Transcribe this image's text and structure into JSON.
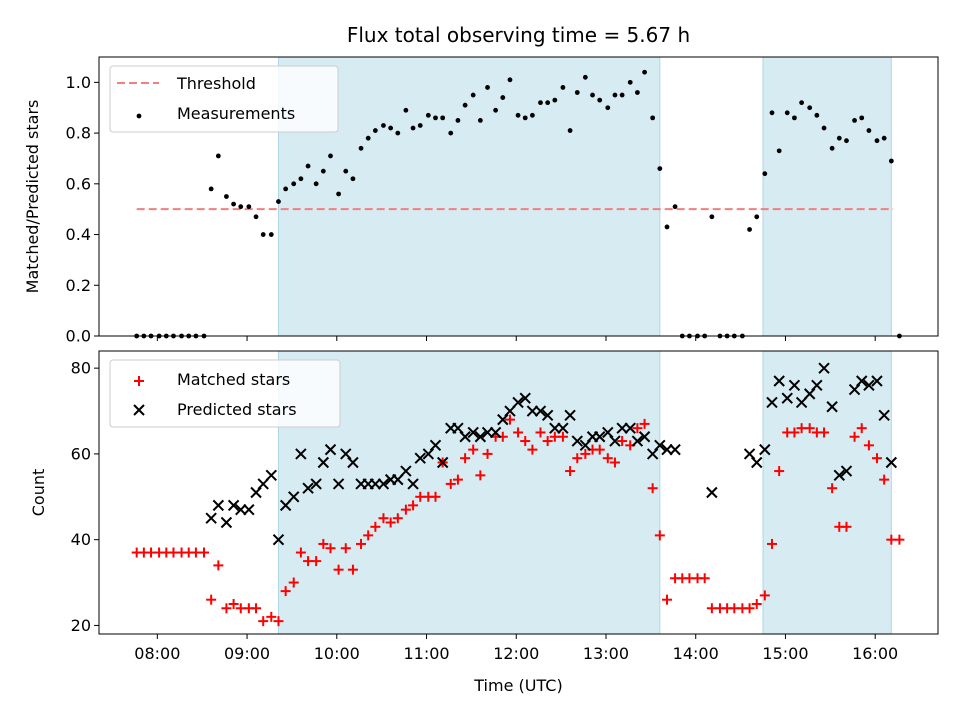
{
  "chart_data": [
    {
      "panel": "top",
      "type": "scatter",
      "title": "Flux total observing time = 5.67 h",
      "xlabel": "",
      "ylabel": "Matched/Predicted stars",
      "ylim": [
        0,
        1.1
      ],
      "yticks": [
        0.0,
        0.2,
        0.4,
        0.6,
        0.8,
        1.0
      ],
      "ytick_labels": [
        "0.0",
        "0.2",
        "0.4",
        "0.6",
        "0.8",
        "1.0"
      ],
      "threshold": {
        "label": "Threshold",
        "value": 0.5,
        "x_range": [
          7.77,
          16.2
        ],
        "color": "#f08080"
      },
      "legend": {
        "location": "upper-left",
        "entries": [
          "Threshold",
          "Measurements"
        ]
      },
      "observing_windows_hours": [
        [
          9.35,
          13.6
        ],
        [
          14.75,
          16.18
        ]
      ],
      "shade_color": "#add8e6",
      "series": [
        {
          "name": "Measurements",
          "color": "#000000",
          "marker": "dot",
          "x": [
            7.77,
            7.85,
            7.93,
            8.02,
            8.1,
            8.18,
            8.27,
            8.35,
            8.43,
            8.52,
            8.6,
            8.68,
            8.77,
            8.85,
            8.93,
            9.02,
            9.1,
            9.18,
            9.27,
            9.35,
            9.43,
            9.52,
            9.6,
            9.68,
            9.77,
            9.85,
            9.93,
            10.02,
            10.1,
            10.18,
            10.27,
            10.35,
            10.43,
            10.52,
            10.6,
            10.68,
            10.77,
            10.85,
            10.93,
            11.02,
            11.1,
            11.18,
            11.27,
            11.35,
            11.43,
            11.52,
            11.6,
            11.68,
            11.77,
            11.85,
            11.93,
            12.02,
            12.1,
            12.18,
            12.27,
            12.35,
            12.43,
            12.52,
            12.6,
            12.68,
            12.77,
            12.85,
            12.93,
            13.02,
            13.1,
            13.18,
            13.27,
            13.35,
            13.43,
            13.52,
            13.6,
            13.68,
            13.77,
            13.85,
            13.93,
            14.02,
            14.1,
            14.18,
            14.27,
            14.35,
            14.43,
            14.52,
            14.6,
            14.68,
            14.77,
            14.85,
            14.93,
            15.02,
            15.1,
            15.18,
            15.27,
            15.35,
            15.43,
            15.52,
            15.6,
            15.68,
            15.77,
            15.85,
            15.93,
            16.02,
            16.1,
            16.18,
            16.27
          ],
          "y": [
            0.0,
            0.0,
            0.0,
            0.0,
            0.0,
            0.0,
            0.0,
            0.0,
            0.0,
            0.0,
            0.58,
            0.71,
            0.55,
            0.52,
            0.51,
            0.51,
            0.47,
            0.4,
            0.4,
            0.53,
            0.58,
            0.6,
            0.62,
            0.67,
            0.6,
            0.65,
            0.71,
            0.56,
            0.65,
            0.62,
            0.74,
            0.78,
            0.81,
            0.83,
            0.82,
            0.8,
            0.89,
            0.82,
            0.83,
            0.87,
            0.86,
            0.86,
            0.8,
            0.85,
            0.91,
            0.95,
            0.85,
            0.98,
            0.89,
            0.94,
            1.01,
            0.87,
            0.86,
            0.87,
            0.92,
            0.92,
            0.93,
            0.98,
            0.81,
            0.96,
            1.02,
            0.95,
            0.93,
            0.9,
            0.95,
            0.95,
            1.0,
            0.96,
            1.04,
            0.86,
            0.66,
            0.43,
            0.51,
            0.0,
            0.0,
            0.0,
            0.0,
            0.47,
            0.0,
            0.0,
            0.0,
            0.0,
            0.42,
            0.47,
            0.64,
            0.88,
            0.73,
            0.88,
            0.86,
            0.92,
            0.9,
            0.87,
            0.82,
            0.74,
            0.78,
            0.77,
            0.85,
            0.86,
            0.81,
            0.77,
            0.78,
            0.69,
            0.0
          ]
        }
      ]
    },
    {
      "panel": "bottom",
      "type": "scatter",
      "title": "",
      "xlabel": "Time (UTC)",
      "ylabel": "Count",
      "ylim": [
        18,
        84
      ],
      "yticks": [
        20,
        40,
        60,
        80
      ],
      "ytick_labels": [
        "20",
        "40",
        "60",
        "80"
      ],
      "xlim_hours": [
        7.35,
        16.7
      ],
      "xticks_hours": [
        8,
        9,
        10,
        11,
        12,
        13,
        14,
        15,
        16
      ],
      "xtick_labels": [
        "08:00",
        "09:00",
        "10:00",
        "11:00",
        "12:00",
        "13:00",
        "14:00",
        "15:00",
        "16:00"
      ],
      "legend": {
        "location": "upper-left",
        "entries": [
          "Matched stars",
          "Predicted stars"
        ]
      },
      "observing_windows_hours": [
        [
          9.35,
          13.6
        ],
        [
          14.75,
          16.18
        ]
      ],
      "shade_color": "#add8e6",
      "series": [
        {
          "name": "Matched stars",
          "color": "#ff0000",
          "marker": "plus",
          "x": [
            7.77,
            7.85,
            7.93,
            8.02,
            8.1,
            8.18,
            8.27,
            8.35,
            8.43,
            8.52,
            8.6,
            8.68,
            8.77,
            8.85,
            8.93,
            9.02,
            9.1,
            9.18,
            9.27,
            9.35,
            9.43,
            9.52,
            9.6,
            9.68,
            9.77,
            9.85,
            9.93,
            10.02,
            10.1,
            10.18,
            10.27,
            10.35,
            10.43,
            10.52,
            10.6,
            10.68,
            10.77,
            10.85,
            10.93,
            11.02,
            11.1,
            11.18,
            11.27,
            11.35,
            11.43,
            11.52,
            11.6,
            11.68,
            11.77,
            11.85,
            11.93,
            12.02,
            12.1,
            12.18,
            12.27,
            12.35,
            12.43,
            12.52,
            12.6,
            12.68,
            12.77,
            12.85,
            12.93,
            13.02,
            13.1,
            13.18,
            13.27,
            13.35,
            13.43,
            13.52,
            13.6,
            13.68,
            13.77,
            13.85,
            13.93,
            14.02,
            14.1,
            14.18,
            14.27,
            14.35,
            14.43,
            14.52,
            14.6,
            14.68,
            14.77,
            14.85,
            14.93,
            15.02,
            15.1,
            15.18,
            15.27,
            15.35,
            15.43,
            15.52,
            15.6,
            15.68,
            15.77,
            15.85,
            15.93,
            16.02,
            16.1,
            16.18,
            16.27
          ],
          "y": [
            37,
            37,
            37,
            37,
            37,
            37,
            37,
            37,
            37,
            37,
            26,
            34,
            24,
            25,
            24,
            24,
            24,
            21,
            22,
            21,
            28,
            30,
            37,
            35,
            35,
            39,
            38,
            33,
            38,
            33,
            39,
            41,
            43,
            45,
            44,
            45,
            47,
            48,
            50,
            50,
            50,
            58,
            53,
            54,
            59,
            61,
            55,
            60,
            64,
            64,
            68,
            65,
            63,
            61,
            65,
            63,
            64,
            64,
            56,
            59,
            60,
            61,
            61,
            59,
            58,
            63,
            62,
            66,
            67,
            52,
            41,
            26,
            31,
            31,
            31,
            31,
            31,
            24,
            24,
            24,
            24,
            24,
            24,
            25,
            27,
            39,
            56,
            65,
            65,
            66,
            66,
            65,
            65,
            52,
            43,
            43,
            64,
            66,
            62,
            59,
            54,
            40,
            40
          ]
        },
        {
          "name": "Predicted stars",
          "color": "#000000",
          "marker": "x",
          "x": [
            8.6,
            8.68,
            8.77,
            8.85,
            8.93,
            9.02,
            9.1,
            9.18,
            9.27,
            9.35,
            9.43,
            9.52,
            9.6,
            9.68,
            9.77,
            9.85,
            9.93,
            10.02,
            10.1,
            10.18,
            10.27,
            10.35,
            10.43,
            10.52,
            10.6,
            10.68,
            10.77,
            10.85,
            10.93,
            11.02,
            11.1,
            11.18,
            11.27,
            11.35,
            11.43,
            11.52,
            11.6,
            11.68,
            11.77,
            11.85,
            11.93,
            12.02,
            12.1,
            12.18,
            12.27,
            12.35,
            12.43,
            12.52,
            12.6,
            12.68,
            12.77,
            12.85,
            12.93,
            13.02,
            13.1,
            13.18,
            13.27,
            13.35,
            13.43,
            13.52,
            13.6,
            13.68,
            13.77,
            14.18,
            14.6,
            14.68,
            14.77,
            14.85,
            14.93,
            15.02,
            15.1,
            15.18,
            15.27,
            15.35,
            15.43,
            15.52,
            15.6,
            15.68,
            15.77,
            15.85,
            15.93,
            16.02,
            16.1,
            16.18
          ],
          "y": [
            45,
            48,
            44,
            48,
            47,
            47,
            51,
            53,
            55,
            40,
            48,
            50,
            60,
            52,
            53,
            58,
            61,
            53,
            60,
            58,
            53,
            53,
            53,
            53,
            54,
            54,
            56,
            53,
            59,
            60,
            62,
            58,
            66,
            66,
            64,
            65,
            64,
            65,
            65,
            68,
            70,
            72,
            73,
            70,
            70,
            69,
            66,
            66,
            69,
            63,
            62,
            64,
            64,
            65,
            63,
            66,
            66,
            63,
            64,
            60,
            62,
            61,
            61,
            51,
            60,
            58,
            61,
            72,
            77,
            73,
            76,
            72,
            74,
            76,
            80,
            71,
            55,
            56,
            75,
            77,
            76,
            77,
            69,
            58
          ]
        }
      ]
    }
  ]
}
